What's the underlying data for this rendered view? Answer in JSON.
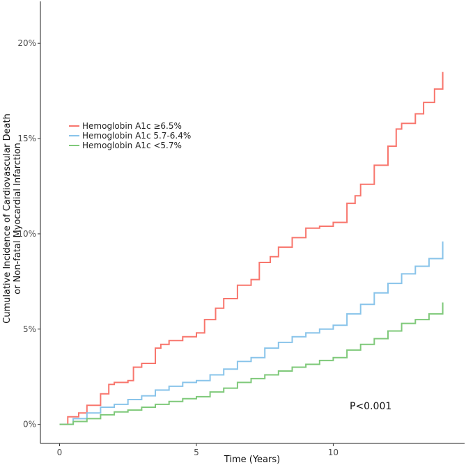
{
  "chart_data": {
    "type": "line",
    "step": true,
    "title": "",
    "xlabel": "Time (Years)",
    "ylabel_lines": [
      "Cumulative Incidence of Cardiovascular Death",
      "or Non-fatal Myocardial Infarction"
    ],
    "xlim": [
      -0.7,
      14.8
    ],
    "ylim": [
      -1.0,
      22.2
    ],
    "x_ticks": [
      0,
      5,
      10
    ],
    "x_tick_labels": [
      "0",
      "5",
      "10"
    ],
    "y_ticks": [
      0,
      5,
      10,
      15,
      20
    ],
    "y_tick_labels": [
      "0%",
      "5%",
      "10%",
      "15%",
      "20%"
    ],
    "grid": false,
    "legend_position": "upper-left",
    "annotation": "P<0.001",
    "series": [
      {
        "name": "Hemoglobin A1c ≥6.5%",
        "color": "#f8766d",
        "x": [
          0,
          0.3,
          0.7,
          1.0,
          1.5,
          1.8,
          2.0,
          2.5,
          2.7,
          3.0,
          3.5,
          3.7,
          4.0,
          4.5,
          5.0,
          5.3,
          5.7,
          6.0,
          6.5,
          7.0,
          7.3,
          7.7,
          8.0,
          8.5,
          9.0,
          9.5,
          10.0,
          10.5,
          10.8,
          11.0,
          11.5,
          12.0,
          12.3,
          12.5,
          13.0,
          13.3,
          13.7,
          14.0
        ],
        "y": [
          0,
          0.4,
          0.6,
          1.0,
          1.6,
          2.1,
          2.2,
          2.3,
          3.0,
          3.2,
          4.0,
          4.2,
          4.4,
          4.6,
          4.8,
          5.5,
          6.1,
          6.6,
          7.3,
          7.6,
          8.5,
          8.8,
          9.3,
          9.8,
          10.3,
          10.4,
          10.6,
          11.6,
          12.0,
          12.6,
          13.6,
          14.6,
          15.5,
          15.8,
          16.3,
          16.9,
          17.6,
          18.5
        ]
      },
      {
        "name": "Hemoglobin A1c 5.7-6.4%",
        "color": "#89c4ea",
        "x": [
          0,
          0.5,
          1.0,
          1.5,
          2.0,
          2.5,
          3.0,
          3.5,
          4.0,
          4.5,
          5.0,
          5.5,
          6.0,
          6.5,
          7.0,
          7.5,
          8.0,
          8.5,
          9.0,
          9.5,
          10.0,
          10.5,
          11.0,
          11.5,
          12.0,
          12.5,
          13.0,
          13.5,
          14.0
        ],
        "y": [
          0,
          0.3,
          0.6,
          0.9,
          1.05,
          1.3,
          1.5,
          1.8,
          2.0,
          2.2,
          2.3,
          2.6,
          2.9,
          3.3,
          3.5,
          4.0,
          4.3,
          4.6,
          4.8,
          5.0,
          5.2,
          5.8,
          6.3,
          6.9,
          7.4,
          7.9,
          8.3,
          8.7,
          9.6
        ]
      },
      {
        "name": "Hemoglobin A1c <5.7%",
        "color": "#7fc97a",
        "x": [
          0,
          0.5,
          1.0,
          1.5,
          2.0,
          2.5,
          3.0,
          3.5,
          4.0,
          4.5,
          5.0,
          5.5,
          6.0,
          6.5,
          7.0,
          7.5,
          8.0,
          8.5,
          9.0,
          9.5,
          10.0,
          10.5,
          11.0,
          11.5,
          12.0,
          12.5,
          13.0,
          13.5,
          14.0
        ],
        "y": [
          0,
          0.15,
          0.3,
          0.5,
          0.65,
          0.75,
          0.9,
          1.05,
          1.2,
          1.35,
          1.45,
          1.7,
          1.9,
          2.2,
          2.4,
          2.6,
          2.8,
          3.0,
          3.15,
          3.35,
          3.5,
          3.9,
          4.2,
          4.5,
          4.9,
          5.3,
          5.5,
          5.8,
          6.4
        ]
      }
    ]
  }
}
